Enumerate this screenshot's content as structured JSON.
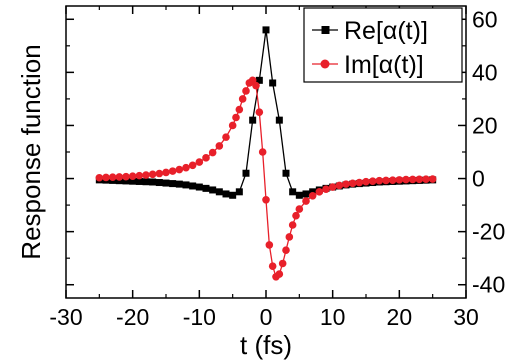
{
  "chart_data": {
    "type": "line",
    "xlabel": "t (fs)",
    "ylabel": "Response function",
    "xlim": [
      -30,
      30
    ],
    "ylim": [
      -45,
      65
    ],
    "x_ticks": [
      -30,
      -20,
      -10,
      0,
      10,
      20,
      30
    ],
    "y_ticks": [
      -40,
      -20,
      0,
      20,
      40,
      60
    ],
    "y_axis_side": "right",
    "grid": false,
    "legend_position": "top-right",
    "series": [
      {
        "name": "Re[α(t)]",
        "color": "#000000",
        "marker": "square",
        "x": [
          -25,
          -24,
          -23,
          -22,
          -21,
          -20,
          -19,
          -18,
          -17,
          -16,
          -15,
          -14,
          -13,
          -12,
          -11,
          -10,
          -9,
          -8,
          -7,
          -6,
          -5,
          -4,
          -3,
          -2,
          -1,
          0,
          1,
          2,
          3,
          4,
          5,
          6,
          7,
          8,
          9,
          10,
          11,
          12,
          13,
          14,
          15,
          16,
          17,
          18,
          19,
          20,
          21,
          22,
          23,
          24,
          25
        ],
        "y": [
          -0.5,
          -0.6,
          -0.7,
          -0.8,
          -0.9,
          -1.0,
          -1.1,
          -1.2,
          -1.3,
          -1.5,
          -1.7,
          -1.9,
          -2.1,
          -2.4,
          -2.8,
          -3.2,
          -3.7,
          -4.3,
          -5.0,
          -5.8,
          -6.3,
          -5.0,
          2.0,
          22.0,
          37.0,
          56.0,
          36.0,
          22.0,
          2.0,
          -5.0,
          -6.3,
          -5.8,
          -5.0,
          -4.3,
          -3.7,
          -3.2,
          -2.8,
          -2.4,
          -2.1,
          -1.9,
          -1.7,
          -1.5,
          -1.3,
          -1.2,
          -1.1,
          -1.0,
          -0.9,
          -0.8,
          -0.7,
          -0.6,
          -0.5
        ]
      },
      {
        "name": "Im[α(t)]",
        "color": "#e8202a",
        "marker": "circle",
        "x": [
          -25,
          -24,
          -23,
          -22,
          -21,
          -20,
          -19,
          -18,
          -17,
          -16,
          -15,
          -14,
          -13,
          -12,
          -11,
          -10,
          -9,
          -8,
          -7,
          -6,
          -5,
          -4.5,
          -4,
          -3.5,
          -3,
          -2.5,
          -2,
          -1.5,
          -1,
          -0.5,
          0,
          0.5,
          1,
          1.5,
          2,
          2.5,
          3,
          3.5,
          4,
          4.5,
          5,
          6,
          7,
          8,
          9,
          10,
          11,
          12,
          13,
          14,
          15,
          16,
          17,
          18,
          19,
          20,
          21,
          22,
          23,
          24,
          25
        ],
        "y": [
          0.3,
          0.4,
          0.5,
          0.6,
          0.7,
          0.9,
          1.1,
          1.3,
          1.6,
          1.9,
          2.3,
          2.8,
          3.4,
          4.1,
          5.0,
          6.2,
          7.8,
          9.8,
          12.3,
          15.6,
          20.0,
          23.0,
          26.0,
          30.0,
          33.0,
          36.0,
          37.0,
          35.0,
          25.0,
          10.0,
          -8.0,
          -25.0,
          -33.0,
          -37.0,
          -36.0,
          -32.0,
          -27.0,
          -22.0,
          -17.5,
          -14.0,
          -11.5,
          -8.5,
          -6.5,
          -5.0,
          -4.0,
          -3.2,
          -2.6,
          -2.1,
          -1.8,
          -1.5,
          -1.2,
          -1.0,
          -0.8,
          -0.7,
          -0.6,
          -0.5,
          -0.4,
          -0.35,
          -0.3,
          -0.25,
          -0.2
        ]
      }
    ]
  }
}
